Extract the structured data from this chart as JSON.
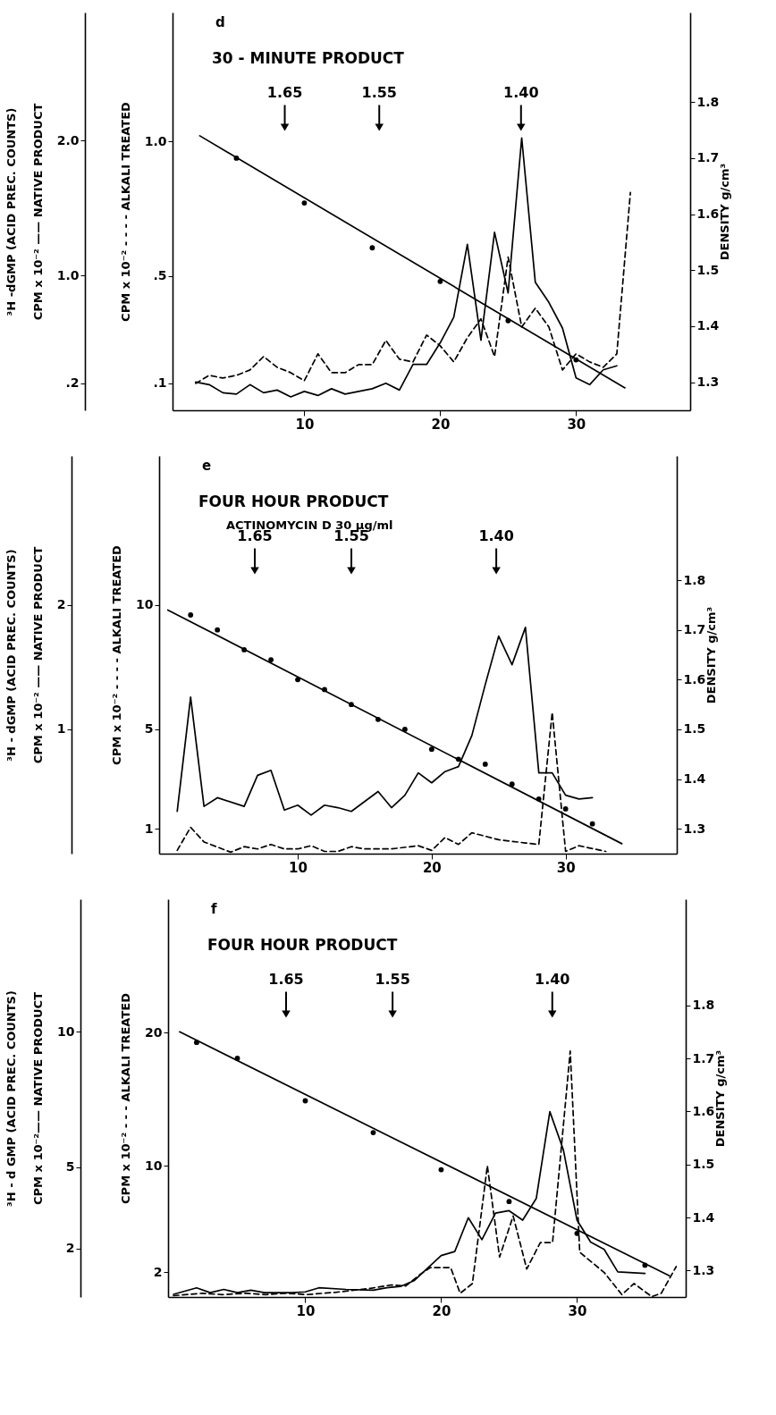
{
  "chart_data": [
    {
      "type": "line",
      "title": "30 - MINUTE PRODUCT",
      "annotations": [
        "d",
        "1.65",
        "1.55",
        "1.40"
      ],
      "ylabel": "³H -dGMP    (ACID PREC. COUNTS)\nCPM x 10⁻² —— NATIVE PRODUCT",
      "y2label": "CPM x 10⁻² - - - - ALKALI TREATED",
      "y3label": "DENSITY    g/cm³",
      "xlim": [
        0.3,
        38.4
      ],
      "xticks": [
        10,
        20,
        30
      ],
      "ylim": [
        0,
        2.95
      ],
      "yticks": [
        {
          "value": 0.2,
          "label": ".2"
        },
        {
          "value": 1.0,
          "label": "1.0"
        },
        {
          "value": 2.0,
          "label": "2.0"
        }
      ],
      "y2lim": [
        0,
        1.48
      ],
      "y2ticks": [
        {
          "value": 0.1,
          "label": ".1"
        },
        {
          "value": 0.5,
          "label": ".5"
        },
        {
          "value": 1.0,
          "label": "1.0"
        }
      ],
      "y3lim": [
        1.25,
        1.96
      ],
      "y3ticks": [
        1.3,
        1.4,
        1.5,
        1.6,
        1.7,
        1.8
      ],
      "x": [
        2,
        3,
        4,
        5,
        6,
        7,
        8,
        9,
        10,
        11,
        12,
        13,
        14,
        15,
        16,
        17,
        18,
        19,
        20,
        21,
        22,
        23,
        24,
        25,
        26,
        27,
        28,
        29,
        30,
        31,
        32,
        33
      ],
      "series": [
        {
          "color": "#000000",
          "line_style": "solid",
          "values": [
            0.21,
            0.19,
            0.13,
            0.12,
            0.19,
            0.13,
            0.15,
            0.1,
            0.14,
            0.11,
            0.16,
            0.12,
            0.14,
            0.16,
            0.2,
            0.15,
            0.34,
            0.34,
            0.5,
            0.69,
            1.23,
            0.52,
            1.32,
            0.87,
            2.02,
            0.95,
            0.8,
            0.61,
            0.24,
            0.19,
            0.3,
            0.33
          ]
        },
        {
          "color": "#000000",
          "line_style": "dashed",
          "axis": "y2",
          "x": [
            2,
            3,
            4,
            5,
            6,
            7,
            8,
            9,
            10,
            11,
            12,
            13,
            14,
            15,
            16,
            17,
            18,
            19,
            20,
            21,
            22,
            23,
            24,
            25,
            26,
            27,
            28,
            29,
            30,
            31,
            32,
            33,
            34
          ],
          "values": [
            0.1,
            0.13,
            0.12,
            0.13,
            0.15,
            0.2,
            0.16,
            0.14,
            0.11,
            0.21,
            0.14,
            0.14,
            0.17,
            0.17,
            0.26,
            0.19,
            0.18,
            0.28,
            0.24,
            0.18,
            0.27,
            0.34,
            0.2,
            0.57,
            0.31,
            0.38,
            0.31,
            0.15,
            0.21,
            0.18,
            0.16,
            0.21,
            0.81
          ]
        },
        {
          "type": "scatter",
          "marker": "circle",
          "color": "#000000",
          "axis": "y3",
          "x": [
            5,
            10,
            15,
            20,
            25,
            30
          ],
          "values": [
            1.7,
            1.62,
            1.54,
            1.48,
            1.41,
            1.34
          ]
        },
        {
          "type": "line",
          "color": "#000000",
          "line_style": "solid",
          "axis": "y3",
          "x": [
            2.3,
            33.6
          ],
          "values": [
            1.74,
            1.29
          ]
        }
      ]
    },
    {
      "type": "line",
      "title": "FOUR HOUR PRODUCT",
      "subtitle": "ACTINOMYCIN D  30 μg/ml",
      "annotations": [
        "e",
        "1.65",
        "1.55",
        "1.40"
      ],
      "ylabel": "³H - dGMP    (ACID PREC. COUNTS)\nCPM x 10⁻² —— NATIVE PRODUCT",
      "y2label": "CPM x 10⁻² - - - - ALKALI TREATED",
      "y3label": "DENSITY    g/cm³",
      "xlim": [
        -0.35,
        38.3
      ],
      "xticks": [
        10,
        20,
        30
      ],
      "ylim": [
        0,
        3.2
      ],
      "yticks": [
        1,
        2
      ],
      "y2lim": [
        0,
        16
      ],
      "y2ticks": [
        1,
        5,
        10
      ],
      "y3lim": [
        1.25,
        2.05
      ],
      "y3ticks": [
        1.3,
        1.4,
        1.5,
        1.6,
        1.7,
        1.8
      ],
      "x": [
        1,
        2,
        3,
        4,
        6,
        7,
        8,
        9,
        10,
        11,
        12,
        13,
        14,
        16,
        17,
        18,
        19,
        20,
        21,
        22,
        23,
        24,
        25,
        26,
        27,
        28,
        29,
        30,
        31,
        32
      ],
      "series": [
        {
          "color": "#000000",
          "line_style": "solid",
          "values": [
            0.34,
            1.26,
            0.38,
            0.45,
            0.38,
            0.63,
            0.67,
            0.35,
            0.39,
            0.31,
            0.39,
            0.37,
            0.34,
            0.5,
            0.37,
            0.47,
            0.65,
            0.57,
            0.66,
            0.7,
            0.95,
            1.36,
            1.75,
            1.52,
            1.82,
            0.65,
            0.65,
            0.47,
            0.44,
            0.45
          ]
        },
        {
          "color": "#000000",
          "line_style": "dashed",
          "axis": "y2",
          "x": [
            1,
            2,
            3,
            5,
            6,
            7,
            8,
            9,
            10,
            11,
            12,
            13,
            14,
            15,
            17,
            19,
            20,
            21,
            22,
            23,
            25,
            27,
            28,
            29,
            30,
            31,
            33
          ],
          "values": [
            0.13,
            1.06,
            0.47,
            0.06,
            0.28,
            0.19,
            0.37,
            0.19,
            0.19,
            0.32,
            0.09,
            0.09,
            0.28,
            0.19,
            0.19,
            0.32,
            0.13,
            0.65,
            0.37,
            0.84,
            0.56,
            0.43,
            0.37,
            5.68,
            0.09,
            0.32,
            0.09
          ]
        },
        {
          "type": "scatter",
          "marker": "circle",
          "color": "#000000",
          "axis": "y3",
          "x": [
            2,
            4,
            6,
            8,
            10,
            12,
            14,
            16,
            18,
            20,
            22,
            24,
            26,
            28,
            30,
            32
          ],
          "values": [
            1.73,
            1.7,
            1.66,
            1.64,
            1.6,
            1.58,
            1.55,
            1.52,
            1.5,
            1.46,
            1.44,
            1.43,
            1.39,
            1.36,
            1.34,
            1.31
          ]
        },
        {
          "type": "line",
          "color": "#000000",
          "line_style": "solid",
          "axis": "y3",
          "x": [
            0.3,
            34.2
          ],
          "values": [
            1.74,
            1.27
          ]
        }
      ]
    },
    {
      "type": "line",
      "title": "FOUR HOUR PRODUCT",
      "annotations": [
        "f",
        "1.65",
        "1.55",
        "1.40"
      ],
      "ylabel": "³H - d GMP (ACID PREC. COUNTS)\nCPM x 10⁻²—— NATIVE PRODUCT",
      "y2label": "CPM x 10⁻² - - - ALKALI TREATED",
      "y3label": "DENSITY    g/cm³",
      "xlim": [
        -0.1,
        38
      ],
      "xticks": [
        10,
        20,
        30
      ],
      "ylim": [
        0.2,
        14.9
      ],
      "yticks": [
        2,
        5,
        10
      ],
      "y2lim": [
        0.15,
        30
      ],
      "y2ticks": [
        2,
        10,
        20
      ],
      "y3lim": [
        1.25,
        2.0
      ],
      "y3ticks": [
        1.3,
        1.4,
        1.5,
        1.6,
        1.7,
        1.8
      ],
      "x": [
        0.3,
        2,
        3,
        4,
        5,
        6,
        7,
        9,
        10,
        11,
        13,
        15,
        16,
        17,
        18,
        20,
        21,
        22,
        23,
        24,
        25,
        26,
        27,
        28,
        29,
        30,
        31,
        32,
        33,
        35
      ],
      "series": [
        {
          "color": "#000000",
          "line_style": "solid",
          "values": [
            0.3,
            0.54,
            0.36,
            0.48,
            0.36,
            0.45,
            0.36,
            0.36,
            0.39,
            0.54,
            0.48,
            0.45,
            0.54,
            0.59,
            0.8,
            1.73,
            1.88,
            3.13,
            2.32,
            3.3,
            3.39,
            3.04,
            3.84,
            7.05,
            5.63,
            3.04,
            2.23,
            1.96,
            1.13,
            1.07
          ]
        },
        {
          "color": "#000000",
          "line_style": "dashed",
          "axis": "y2",
          "x": [
            0.3,
            2.4,
            3.9,
            5.7,
            7.1,
            8.6,
            10.1,
            12.3,
            14.8,
            16.3,
            17.4,
            18.5,
            19.2,
            20.7,
            21.4,
            22.3,
            23.4,
            24.3,
            25.3,
            26.3,
            27.3,
            28.2,
            29.5,
            30.2,
            32,
            33.3,
            34.2,
            35.5,
            36.2,
            37.3
          ],
          "values": [
            0.25,
            0.43,
            0.33,
            0.43,
            0.33,
            0.43,
            0.33,
            0.51,
            0.8,
            1.05,
            0.98,
            1.88,
            2.36,
            2.36,
            0.43,
            1.16,
            10.0,
            3.15,
            6.23,
            2.25,
            4.24,
            4.24,
            18.6,
            3.51,
            1.99,
            0.33,
            1.16,
            0.18,
            0.43,
            2.43
          ]
        },
        {
          "type": "scatter",
          "marker": "circle",
          "color": "#000000",
          "axis": "y3",
          "x": [
            2,
            5,
            10,
            15,
            20,
            25,
            30,
            35
          ],
          "values": [
            1.73,
            1.7,
            1.62,
            1.56,
            1.49,
            1.43,
            1.37,
            1.31
          ]
        },
        {
          "type": "line",
          "color": "#000000",
          "line_style": "solid",
          "axis": "y3",
          "x": [
            0.75,
            36.8
          ],
          "values": [
            1.75,
            1.29
          ]
        }
      ]
    }
  ]
}
